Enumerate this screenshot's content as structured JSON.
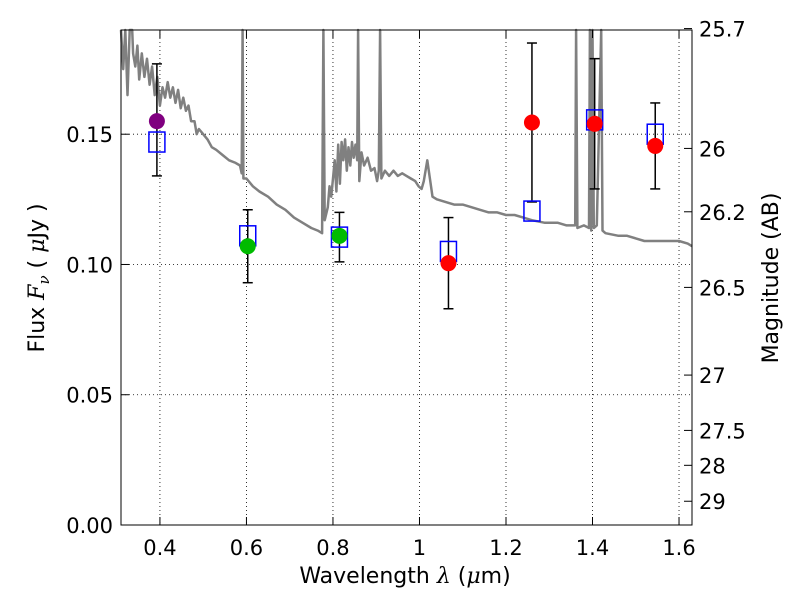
{
  "chart_data": {
    "type": "scatter",
    "title": "",
    "xlabel_prefix": "Wavelength  ",
    "xlabel_var": "λ",
    "xlabel_unit_open": " (",
    "xlabel_unit_mu": "μ",
    "xlabel_unit_close": "m)",
    "ylabel_prefix": "Flux  ",
    "ylabel_var": "F",
    "ylabel_sub": "ν",
    "ylabel_unit_open": "  ( ",
    "ylabel_unit_mu": "μ",
    "ylabel_unit_close": "Jy )",
    "y2label": "Magnitude (AB)",
    "xlim": [
      0.31,
      1.63
    ],
    "ylim": [
      0.0,
      0.19
    ],
    "grid": true,
    "x_ticks": [
      {
        "value": 0.4,
        "label": "0.4"
      },
      {
        "value": 0.6,
        "label": "0.6"
      },
      {
        "value": 0.8,
        "label": "0.8"
      },
      {
        "value": 1.0,
        "label": "1"
      },
      {
        "value": 1.2,
        "label": "1.2"
      },
      {
        "value": 1.4,
        "label": "1.4"
      },
      {
        "value": 1.6,
        "label": "1.6"
      }
    ],
    "y_ticks": [
      {
        "value": 0.0,
        "label": "0.00"
      },
      {
        "value": 0.05,
        "label": "0.05"
      },
      {
        "value": 0.1,
        "label": "0.10"
      },
      {
        "value": 0.15,
        "label": "0.15"
      }
    ],
    "y2_ticks": [
      {
        "mag": 25.7,
        "label": "25.7"
      },
      {
        "mag": 26,
        "label": "26"
      },
      {
        "mag": 26.2,
        "label": "26.2"
      },
      {
        "mag": 26.5,
        "label": "26.5"
      },
      {
        "mag": 27,
        "label": "27"
      },
      {
        "mag": 27.5,
        "label": "27.5"
      },
      {
        "mag": 28,
        "label": "28"
      },
      {
        "mag": 29,
        "label": "29"
      }
    ],
    "observed": [
      {
        "x": 0.393,
        "y": 0.155,
        "err_low": 0.134,
        "err_high": 0.177,
        "color": "#800080"
      },
      {
        "x": 0.603,
        "y": 0.107,
        "err_low": 0.093,
        "err_high": 0.121,
        "color": "#00bb00"
      },
      {
        "x": 0.815,
        "y": 0.111,
        "err_low": 0.101,
        "err_high": 0.12,
        "color": "#00bb00"
      },
      {
        "x": 1.067,
        "y": 0.1005,
        "err_low": 0.083,
        "err_high": 0.118,
        "color": "#ff0000"
      },
      {
        "x": 1.26,
        "y": 0.1545,
        "err_low": 0.124,
        "err_high": 0.185,
        "color": "#ff0000"
      },
      {
        "x": 1.405,
        "y": 0.154,
        "err_low": 0.129,
        "err_high": 0.179,
        "color": "#ff0000"
      },
      {
        "x": 1.545,
        "y": 0.1455,
        "err_low": 0.129,
        "err_high": 0.162,
        "color": "#ff0000"
      }
    ],
    "model_points": [
      {
        "x": 0.393,
        "y": 0.147
      },
      {
        "x": 0.603,
        "y": 0.111
      },
      {
        "x": 0.815,
        "y": 0.1105
      },
      {
        "x": 1.067,
        "y": 0.105
      },
      {
        "x": 1.26,
        "y": 0.1205
      },
      {
        "x": 1.405,
        "y": 0.1555
      },
      {
        "x": 1.545,
        "y": 0.15
      }
    ],
    "model_spectrum": [
      [
        0.31,
        0.19
      ],
      [
        0.315,
        0.175
      ],
      [
        0.32,
        0.19
      ],
      [
        0.325,
        0.165
      ],
      [
        0.33,
        0.19
      ],
      [
        0.336,
        0.19
      ],
      [
        0.338,
        0.181
      ],
      [
        0.343,
        0.176
      ],
      [
        0.348,
        0.184
      ],
      [
        0.352,
        0.171
      ],
      [
        0.358,
        0.181
      ],
      [
        0.364,
        0.172
      ],
      [
        0.37,
        0.179
      ],
      [
        0.376,
        0.169
      ],
      [
        0.382,
        0.176
      ],
      [
        0.388,
        0.165
      ],
      [
        0.394,
        0.172
      ],
      [
        0.4,
        0.161
      ],
      [
        0.406,
        0.168
      ],
      [
        0.412,
        0.164
      ],
      [
        0.418,
        0.17
      ],
      [
        0.424,
        0.164
      ],
      [
        0.43,
        0.168
      ],
      [
        0.436,
        0.162
      ],
      [
        0.442,
        0.167
      ],
      [
        0.448,
        0.16
      ],
      [
        0.454,
        0.164
      ],
      [
        0.46,
        0.159
      ],
      [
        0.466,
        0.161
      ],
      [
        0.472,
        0.155
      ],
      [
        0.48,
        0.155
      ],
      [
        0.485,
        0.15
      ],
      [
        0.49,
        0.152
      ],
      [
        0.5,
        0.15
      ],
      [
        0.51,
        0.148
      ],
      [
        0.52,
        0.145
      ],
      [
        0.53,
        0.144
      ],
      [
        0.545,
        0.142
      ],
      [
        0.56,
        0.14
      ],
      [
        0.575,
        0.139
      ],
      [
        0.585,
        0.138
      ],
      [
        0.589,
        0.135
      ],
      [
        0.591,
        0.19
      ],
      [
        0.593,
        0.133
      ],
      [
        0.6,
        0.133
      ],
      [
        0.615,
        0.13
      ],
      [
        0.63,
        0.128
      ],
      [
        0.65,
        0.126
      ],
      [
        0.67,
        0.123
      ],
      [
        0.69,
        0.121
      ],
      [
        0.71,
        0.118
      ],
      [
        0.73,
        0.116
      ],
      [
        0.75,
        0.114
      ],
      [
        0.765,
        0.113
      ],
      [
        0.775,
        0.112
      ],
      [
        0.778,
        0.19
      ],
      [
        0.781,
        0.117
      ],
      [
        0.788,
        0.122
      ],
      [
        0.792,
        0.13
      ],
      [
        0.796,
        0.126
      ],
      [
        0.8,
        0.133
      ],
      [
        0.804,
        0.14
      ],
      [
        0.808,
        0.128
      ],
      [
        0.812,
        0.146
      ],
      [
        0.816,
        0.131
      ],
      [
        0.82,
        0.147
      ],
      [
        0.824,
        0.14
      ],
      [
        0.828,
        0.148
      ],
      [
        0.832,
        0.136
      ],
      [
        0.836,
        0.145
      ],
      [
        0.84,
        0.138
      ],
      [
        0.844,
        0.147
      ],
      [
        0.848,
        0.141
      ],
      [
        0.852,
        0.146
      ],
      [
        0.856,
        0.14
      ],
      [
        0.858,
        0.19
      ],
      [
        0.861,
        0.132
      ],
      [
        0.866,
        0.143
      ],
      [
        0.872,
        0.138
      ],
      [
        0.88,
        0.141
      ],
      [
        0.888,
        0.136
      ],
      [
        0.896,
        0.137
      ],
      [
        0.902,
        0.132
      ],
      [
        0.906,
        0.136
      ],
      [
        0.909,
        0.19
      ],
      [
        0.912,
        0.133
      ],
      [
        0.92,
        0.136
      ],
      [
        0.93,
        0.134
      ],
      [
        0.94,
        0.136
      ],
      [
        0.95,
        0.134
      ],
      [
        0.96,
        0.135
      ],
      [
        0.97,
        0.134
      ],
      [
        0.98,
        0.133
      ],
      [
        0.99,
        0.132
      ],
      [
        0.998,
        0.13
      ],
      [
        1.005,
        0.129
      ],
      [
        1.01,
        0.132
      ],
      [
        1.018,
        0.14
      ],
      [
        1.024,
        0.133
      ],
      [
        1.03,
        0.126
      ],
      [
        1.04,
        0.125
      ],
      [
        1.06,
        0.124
      ],
      [
        1.08,
        0.123
      ],
      [
        1.1,
        0.123
      ],
      [
        1.12,
        0.122
      ],
      [
        1.14,
        0.121
      ],
      [
        1.16,
        0.12
      ],
      [
        1.18,
        0.12
      ],
      [
        1.2,
        0.119
      ],
      [
        1.22,
        0.119
      ],
      [
        1.24,
        0.118
      ],
      [
        1.26,
        0.117
      ],
      [
        1.29,
        0.116
      ],
      [
        1.32,
        0.116
      ],
      [
        1.34,
        0.115
      ],
      [
        1.36,
        0.115
      ],
      [
        1.362,
        0.19
      ],
      [
        1.365,
        0.114
      ],
      [
        1.38,
        0.115
      ],
      [
        1.392,
        0.114
      ],
      [
        1.394,
        0.19
      ],
      [
        1.397,
        0.113
      ],
      [
        1.4,
        0.19
      ],
      [
        1.403,
        0.114
      ],
      [
        1.41,
        0.115
      ],
      [
        1.42,
        0.19
      ],
      [
        1.423,
        0.113
      ],
      [
        1.43,
        0.112
      ],
      [
        1.46,
        0.111
      ],
      [
        1.48,
        0.111
      ],
      [
        1.5,
        0.11
      ],
      [
        1.52,
        0.109
      ],
      [
        1.54,
        0.109
      ],
      [
        1.56,
        0.109
      ],
      [
        1.58,
        0.109
      ],
      [
        1.6,
        0.109
      ],
      [
        1.62,
        0.108
      ],
      [
        1.63,
        0.107
      ]
    ]
  },
  "colors": {
    "model_line": "#808080",
    "model_box": "#0000ff",
    "error_bar": "#000000"
  }
}
